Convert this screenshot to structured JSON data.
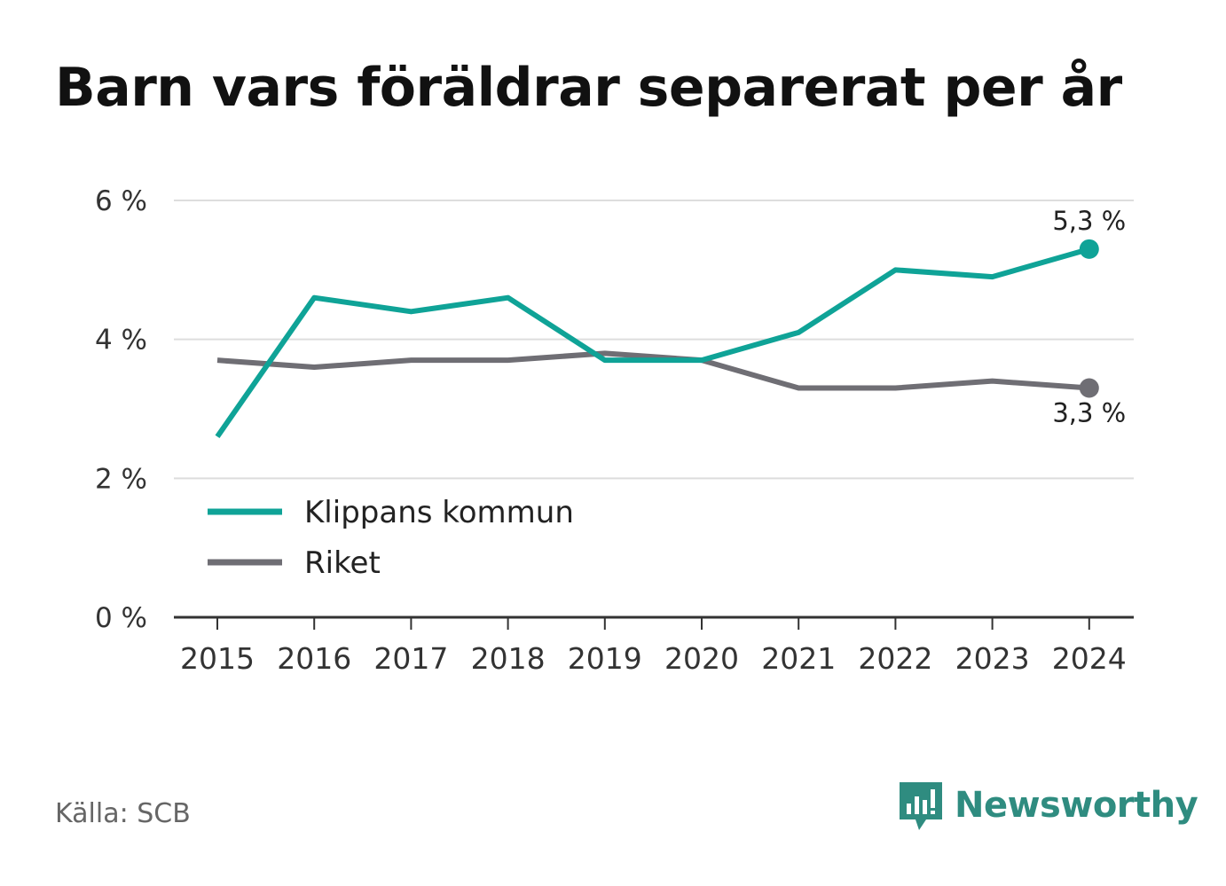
{
  "title": "Barn vars föräldrar separerat per år",
  "source": "Källa: SCB",
  "brand": {
    "name": "Newsworthy",
    "icon": "newsworthy-logo-icon",
    "color": "#2f8c80"
  },
  "chart_data": {
    "type": "line",
    "title": "Barn vars föräldrar separerat per år",
    "xlabel": "",
    "ylabel": "",
    "x": [
      "2015",
      "2016",
      "2017",
      "2018",
      "2019",
      "2020",
      "2021",
      "2022",
      "2023",
      "2024"
    ],
    "ylim": [
      0,
      6
    ],
    "y_ticks": [
      0,
      2,
      4,
      6
    ],
    "y_tick_labels": [
      "0 %",
      "2 %",
      "4 %",
      "6 %"
    ],
    "grid": true,
    "legend_position": "bottom-left",
    "series": [
      {
        "name": "Klippans kommun",
        "color": "#0fa397",
        "values": [
          2.6,
          4.6,
          4.4,
          4.6,
          3.7,
          3.7,
          4.1,
          5.0,
          4.9,
          5.3
        ],
        "end_label": "5,3 %"
      },
      {
        "name": "Riket",
        "color": "#6f6e74",
        "values": [
          3.7,
          3.6,
          3.7,
          3.7,
          3.8,
          3.7,
          3.3,
          3.3,
          3.4,
          3.3
        ],
        "end_label": "3,3 %"
      }
    ]
  }
}
